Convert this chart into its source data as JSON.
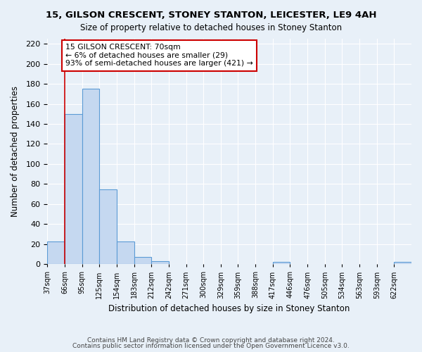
{
  "title": "15, GILSON CRESCENT, STONEY STANTON, LEICESTER, LE9 4AH",
  "subtitle": "Size of property relative to detached houses in Stoney Stanton",
  "xlabel": "Distribution of detached houses by size in Stoney Stanton",
  "ylabel": "Number of detached properties",
  "bin_labels": [
    "37sqm",
    "66sqm",
    "95sqm",
    "125sqm",
    "154sqm",
    "183sqm",
    "212sqm",
    "242sqm",
    "271sqm",
    "300sqm",
    "329sqm",
    "359sqm",
    "388sqm",
    "417sqm",
    "446sqm",
    "476sqm",
    "505sqm",
    "534sqm",
    "563sqm",
    "593sqm",
    "622sqm"
  ],
  "bar_values": [
    23,
    150,
    175,
    75,
    23,
    7,
    3,
    0,
    0,
    0,
    0,
    0,
    0,
    2,
    0,
    0,
    0,
    0,
    0,
    0,
    2
  ],
  "bar_color": "#c5d8f0",
  "bar_edge_color": "#5b9bd5",
  "annotation_box_text": "15 GILSON CRESCENT: 70sqm\n← 6% of detached houses are smaller (29)\n93% of semi-detached houses are larger (421) →",
  "annotation_box_color": "#ffffff",
  "annotation_box_edge_color": "#cc0000",
  "red_line_x": 1.0,
  "ylim": [
    0,
    225
  ],
  "yticks": [
    0,
    20,
    40,
    60,
    80,
    100,
    120,
    140,
    160,
    180,
    200,
    220
  ],
  "background_color": "#e8f0f8",
  "footer_line1": "Contains HM Land Registry data © Crown copyright and database right 2024.",
  "footer_line2": "Contains public sector information licensed under the Open Government Licence v3.0."
}
